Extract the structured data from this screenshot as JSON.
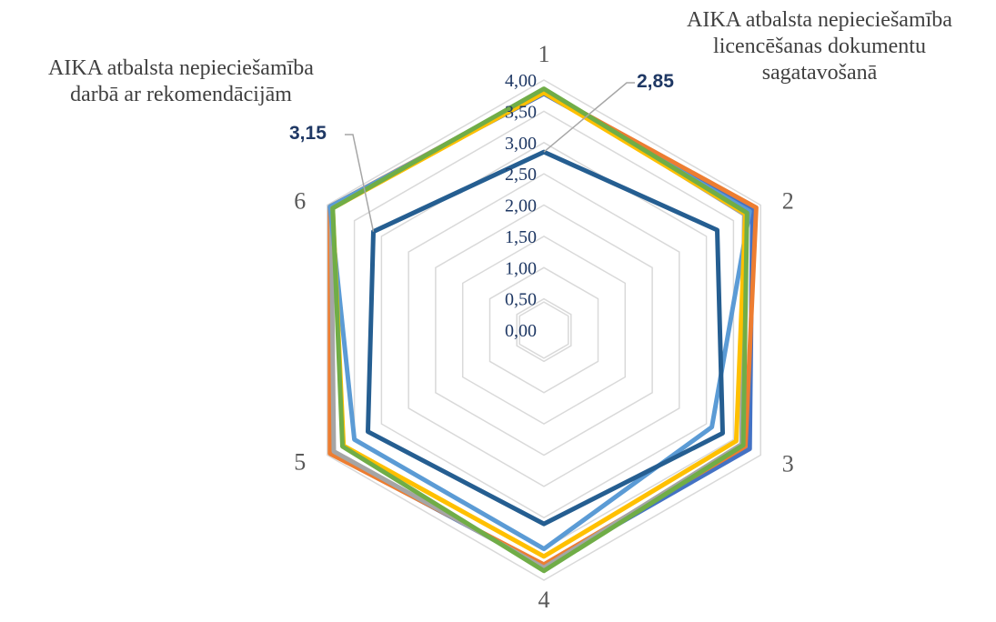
{
  "chart_data": {
    "type": "radar",
    "categories": [
      "1",
      "2",
      "3",
      "4",
      "5",
      "6"
    ],
    "rmax": 4.0,
    "ticks": [
      "0,00",
      "0,50",
      "1,00",
      "1,50",
      "2,00",
      "2,50",
      "3,00",
      "3,50",
      "4,00"
    ],
    "tick_values": [
      0,
      0.5,
      1,
      1.5,
      2,
      2.5,
      3,
      3.5,
      4
    ],
    "grid": true,
    "legend": "none",
    "series": [
      {
        "color": "#4472c4",
        "values": [
          3.78,
          3.85,
          3.8,
          3.78,
          3.93,
          3.95
        ]
      },
      {
        "color": "#ed7d31",
        "values": [
          3.82,
          3.92,
          3.72,
          3.75,
          3.95,
          3.95
        ]
      },
      {
        "color": "#a5a5a5",
        "values": [
          3.84,
          3.7,
          3.65,
          3.8,
          3.88,
          3.93
        ]
      },
      {
        "color": "#5b9bd5",
        "values": [
          3.8,
          3.8,
          3.1,
          3.5,
          3.5,
          3.95
        ]
      },
      {
        "color": "#ffc000",
        "values": [
          3.8,
          3.72,
          3.55,
          3.62,
          3.7,
          3.9
        ]
      },
      {
        "color": "#70ad47",
        "values": [
          3.86,
          3.75,
          3.68,
          3.85,
          3.72,
          3.9
        ]
      },
      {
        "color": "#255e91",
        "values": [
          2.85,
          3.2,
          3.3,
          3.1,
          3.25,
          3.15
        ]
      }
    ],
    "data_labels": [
      {
        "category": "1",
        "text": "2,85"
      },
      {
        "category": "6",
        "text": "3,15"
      }
    ],
    "annotations": [
      {
        "category": "1",
        "lines": [
          "AIKA atbalsta nepieciešamība",
          "licencēšanas dokumentu",
          "sagatavošanā"
        ]
      },
      {
        "category": "6",
        "lines": [
          "AIKA atbalsta nepieciešamība",
          "darbā ar rekomendācijām"
        ]
      }
    ]
  }
}
